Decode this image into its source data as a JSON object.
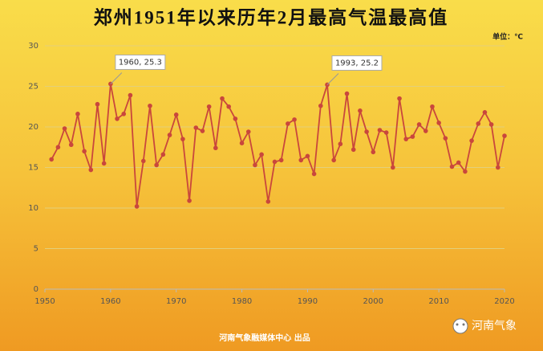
{
  "chart_data": {
    "type": "line",
    "title": "郑州1951年以来历年2月最高气温最高值",
    "unit_label": "单位：℃",
    "footer": "河南气象融媒体中心 出品",
    "logo_text": "河南气象",
    "x": [
      1951,
      1952,
      1953,
      1954,
      1955,
      1956,
      1957,
      1958,
      1959,
      1960,
      1961,
      1962,
      1963,
      1964,
      1965,
      1966,
      1967,
      1968,
      1969,
      1970,
      1971,
      1972,
      1973,
      1974,
      1975,
      1976,
      1977,
      1978,
      1979,
      1980,
      1981,
      1982,
      1983,
      1984,
      1985,
      1986,
      1987,
      1988,
      1989,
      1990,
      1991,
      1992,
      1993,
      1994,
      1995,
      1996,
      1997,
      1998,
      1999,
      2000,
      2001,
      2002,
      2003,
      2004,
      2005,
      2006,
      2007,
      2008,
      2009,
      2010,
      2011,
      2012,
      2013,
      2014,
      2015,
      2016,
      2017,
      2018,
      2019,
      2020
    ],
    "series": [
      {
        "color": "#c9473c",
        "values": [
          16.0,
          17.5,
          19.8,
          17.8,
          21.6,
          17.0,
          14.7,
          22.8,
          15.5,
          25.3,
          21.0,
          21.6,
          23.9,
          10.2,
          15.8,
          22.6,
          15.3,
          16.6,
          19.0,
          21.5,
          18.5,
          10.9,
          19.9,
          19.5,
          22.5,
          17.4,
          23.5,
          22.5,
          21.0,
          18.0,
          19.4,
          15.3,
          16.6,
          10.8,
          15.7,
          15.9,
          20.4,
          20.9,
          15.9,
          16.4,
          14.2,
          22.6,
          25.2,
          15.9,
          17.9,
          24.1,
          17.2,
          22.0,
          19.4,
          16.9,
          19.6,
          19.3,
          15.0,
          23.5,
          18.5,
          18.8,
          20.3,
          19.5,
          22.5,
          20.5,
          18.6,
          15.1,
          15.6,
          14.5,
          18.3,
          20.4,
          21.8,
          20.3,
          15.0,
          18.9
        ]
      }
    ],
    "annotations": [
      {
        "x": 1960,
        "y": 25.3,
        "label": "1960, 25.3"
      },
      {
        "x": 1993,
        "y": 25.2,
        "label": "1993, 25.2"
      }
    ],
    "xlim": [
      1950,
      2020
    ],
    "xticks": [
      1950,
      1960,
      1970,
      1980,
      1990,
      2000,
      2010,
      2020
    ],
    "ylim": [
      0,
      30
    ],
    "yticks": [
      0,
      5,
      10,
      15,
      20,
      25,
      30
    ],
    "grid": true
  }
}
